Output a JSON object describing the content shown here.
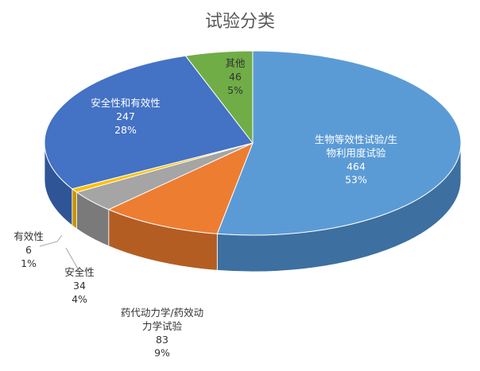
{
  "chart_data": {
    "type": "pie",
    "title": "试验分类",
    "three_d": true,
    "legend": "none",
    "slices": [
      {
        "name": [
          "生物等效性试验/生",
          "物利用度试验"
        ],
        "value": 464,
        "percent": "53%",
        "color": "#5b9bd5",
        "side_color": "#3d6fa0",
        "label_color": "#ffffff"
      },
      {
        "name": [
          "药代动力学/药效动",
          "力学试验"
        ],
        "value": 83,
        "percent": "9%",
        "color": "#ed7d31",
        "side_color": "#b45d22",
        "label_color": "#333333"
      },
      {
        "name": [
          "安全性"
        ],
        "value": 34,
        "percent": "4%",
        "color": "#a5a5a5",
        "side_color": "#7a7a7a",
        "label_color": "#333333"
      },
      {
        "name": [
          "有效性"
        ],
        "value": 6,
        "percent": "1%",
        "color": "#ffc000",
        "side_color": "#c89400",
        "label_color": "#333333"
      },
      {
        "name": [
          "安全性和有效性"
        ],
        "value": 247,
        "percent": "28%",
        "color": "#4472c4",
        "side_color": "#2f5597",
        "label_color": "#ffffff"
      },
      {
        "name": [
          "其他"
        ],
        "value": 46,
        "percent": "5%",
        "color": "#70ad47",
        "side_color": "#4e7f31",
        "label_color": "#333333"
      }
    ]
  }
}
